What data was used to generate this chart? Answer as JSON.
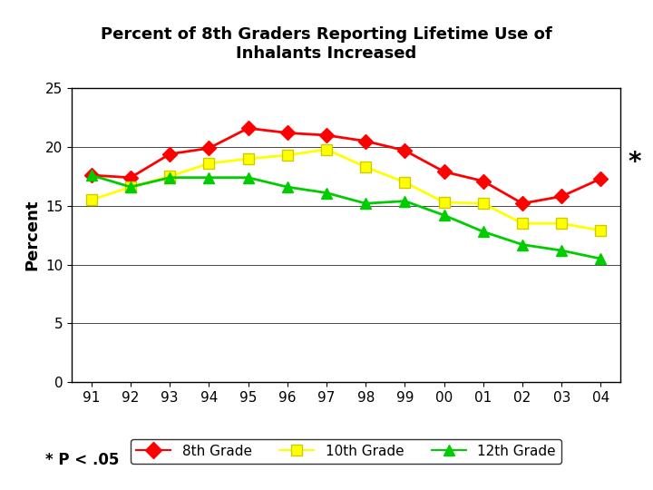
{
  "title": "Percent of 8th Graders Reporting Lifetime Use of\nInhalants Increased",
  "ylabel": "Percent",
  "years": [
    "91",
    "92",
    "93",
    "94",
    "95",
    "96",
    "97",
    "98",
    "99",
    "00",
    "01",
    "02",
    "03",
    "04"
  ],
  "grade8": [
    17.6,
    17.4,
    19.4,
    19.9,
    21.6,
    21.2,
    21.0,
    20.5,
    19.7,
    17.9,
    17.1,
    15.2,
    15.8,
    17.3
  ],
  "grade10": [
    15.5,
    16.6,
    17.5,
    18.6,
    19.0,
    19.3,
    19.8,
    18.3,
    17.0,
    15.3,
    15.2,
    13.5,
    13.5,
    12.9
  ],
  "grade12": [
    17.6,
    16.6,
    17.4,
    17.4,
    17.4,
    16.6,
    16.1,
    15.2,
    15.4,
    14.2,
    12.8,
    11.7,
    11.2,
    10.5
  ],
  "color8": "#ff0000",
  "color10": "#ffff00",
  "color12": "#00cc00",
  "marker8": "D",
  "marker10": "s",
  "marker12": "^",
  "ylim": [
    0,
    25
  ],
  "yticks": [
    0,
    5,
    10,
    15,
    20,
    25
  ],
  "bg_color": "#ffffff",
  "header_bg": "#3a5aaa",
  "annotation": "*",
  "footnote": "* P < .05",
  "legend_labels": [
    "8th Grade",
    "10th Grade",
    "12th Grade"
  ]
}
